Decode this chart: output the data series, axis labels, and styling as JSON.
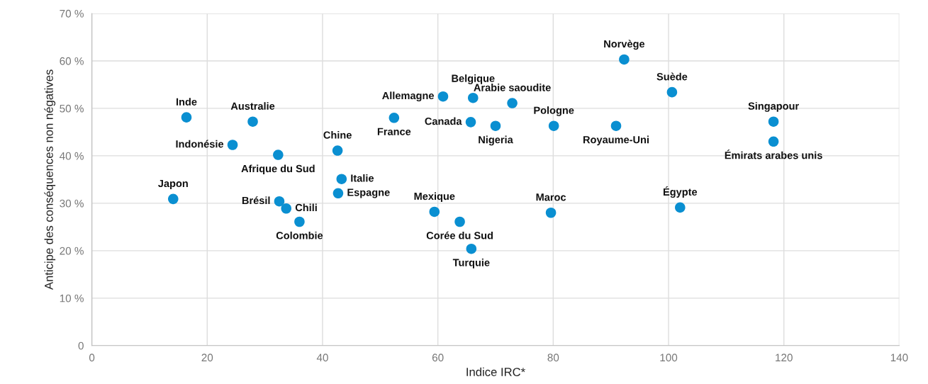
{
  "chart_data": {
    "type": "scatter",
    "xlabel": "Indice IRC*",
    "ylabel": "Anticipe des conséquences non négatives",
    "xlim": [
      0,
      140
    ],
    "xticks": [
      0,
      20,
      40,
      60,
      80,
      100,
      120,
      140
    ],
    "ylim": [
      0,
      70
    ],
    "yticks": [
      {
        "value": 0,
        "label": "0"
      },
      {
        "value": 10,
        "label": "10 %"
      },
      {
        "value": 20,
        "label": "20 %"
      },
      {
        "value": 30,
        "label": "30 %"
      },
      {
        "value": 40,
        "label": "40 %"
      },
      {
        "value": 50,
        "label": "50 %"
      },
      {
        "value": 60,
        "label": "60 %"
      },
      {
        "value": 70,
        "label": "70 %"
      }
    ],
    "grid": true,
    "marker": "circle",
    "series": [
      {
        "color": "#0a8fd1",
        "x": [
          16.4,
          27.9,
          24.4,
          32.3,
          14.1,
          32.5,
          33.7,
          36.0,
          42.6,
          43.3,
          42.7,
          52.4,
          60.9,
          66.1,
          65.7,
          70.0,
          72.9,
          59.4,
          63.8,
          65.8,
          80.1,
          79.6,
          92.3,
          90.9,
          100.6,
          102.0,
          118.2,
          118.2
        ],
        "values": [
          48.1,
          47.2,
          42.3,
          40.2,
          30.9,
          30.4,
          28.9,
          26.1,
          41.1,
          35.1,
          32.1,
          48.0,
          52.5,
          52.2,
          47.1,
          46.3,
          51.1,
          28.2,
          26.1,
          20.4,
          46.3,
          28.0,
          60.3,
          46.3,
          53.4,
          29.1,
          47.2,
          43.0
        ]
      }
    ],
    "annotations": [
      {
        "text": "Inde",
        "x": 16.4,
        "y": 48.1
      },
      {
        "text": "Australie",
        "x": 27.9,
        "y": 47.2
      },
      {
        "text": "Indonésie",
        "x": 24.4,
        "y": 42.3
      },
      {
        "text": "Afrique du Sud",
        "x": 32.3,
        "y": 40.2
      },
      {
        "text": "Japon",
        "x": 14.1,
        "y": 30.9
      },
      {
        "text": "Brésil",
        "x": 32.5,
        "y": 30.4
      },
      {
        "text": "Chili",
        "x": 33.7,
        "y": 28.9
      },
      {
        "text": "Colombie",
        "x": 36.0,
        "y": 26.1
      },
      {
        "text": "Chine",
        "x": 42.6,
        "y": 41.1
      },
      {
        "text": "Italie",
        "x": 43.3,
        "y": 35.1
      },
      {
        "text": "Espagne",
        "x": 42.7,
        "y": 32.1
      },
      {
        "text": "France",
        "x": 52.4,
        "y": 48.0
      },
      {
        "text": "Allemagne",
        "x": 60.9,
        "y": 52.5
      },
      {
        "text": "Belgique",
        "x": 66.1,
        "y": 52.2
      },
      {
        "text": "Canada",
        "x": 65.7,
        "y": 47.1
      },
      {
        "text": "Nigeria",
        "x": 70.0,
        "y": 46.3
      },
      {
        "text": "Arabie saoudite",
        "x": 72.9,
        "y": 51.1
      },
      {
        "text": "Mexique",
        "x": 59.4,
        "y": 28.2
      },
      {
        "text": "Corée du Sud",
        "x": 63.8,
        "y": 26.1
      },
      {
        "text": "Turquie",
        "x": 65.8,
        "y": 20.4
      },
      {
        "text": "Pologne",
        "x": 80.1,
        "y": 46.3
      },
      {
        "text": "Maroc",
        "x": 79.6,
        "y": 28.0
      },
      {
        "text": "Norvège",
        "x": 92.3,
        "y": 60.3
      },
      {
        "text": "Royaume-Uni",
        "x": 90.9,
        "y": 46.3
      },
      {
        "text": "Suède",
        "x": 100.6,
        "y": 53.4
      },
      {
        "text": "Égypte",
        "x": 102.0,
        "y": 29.1
      },
      {
        "text": "Singapour",
        "x": 118.2,
        "y": 47.2
      },
      {
        "text": "Émirats arabes unis",
        "x": 118.2,
        "y": 43.0
      }
    ]
  }
}
